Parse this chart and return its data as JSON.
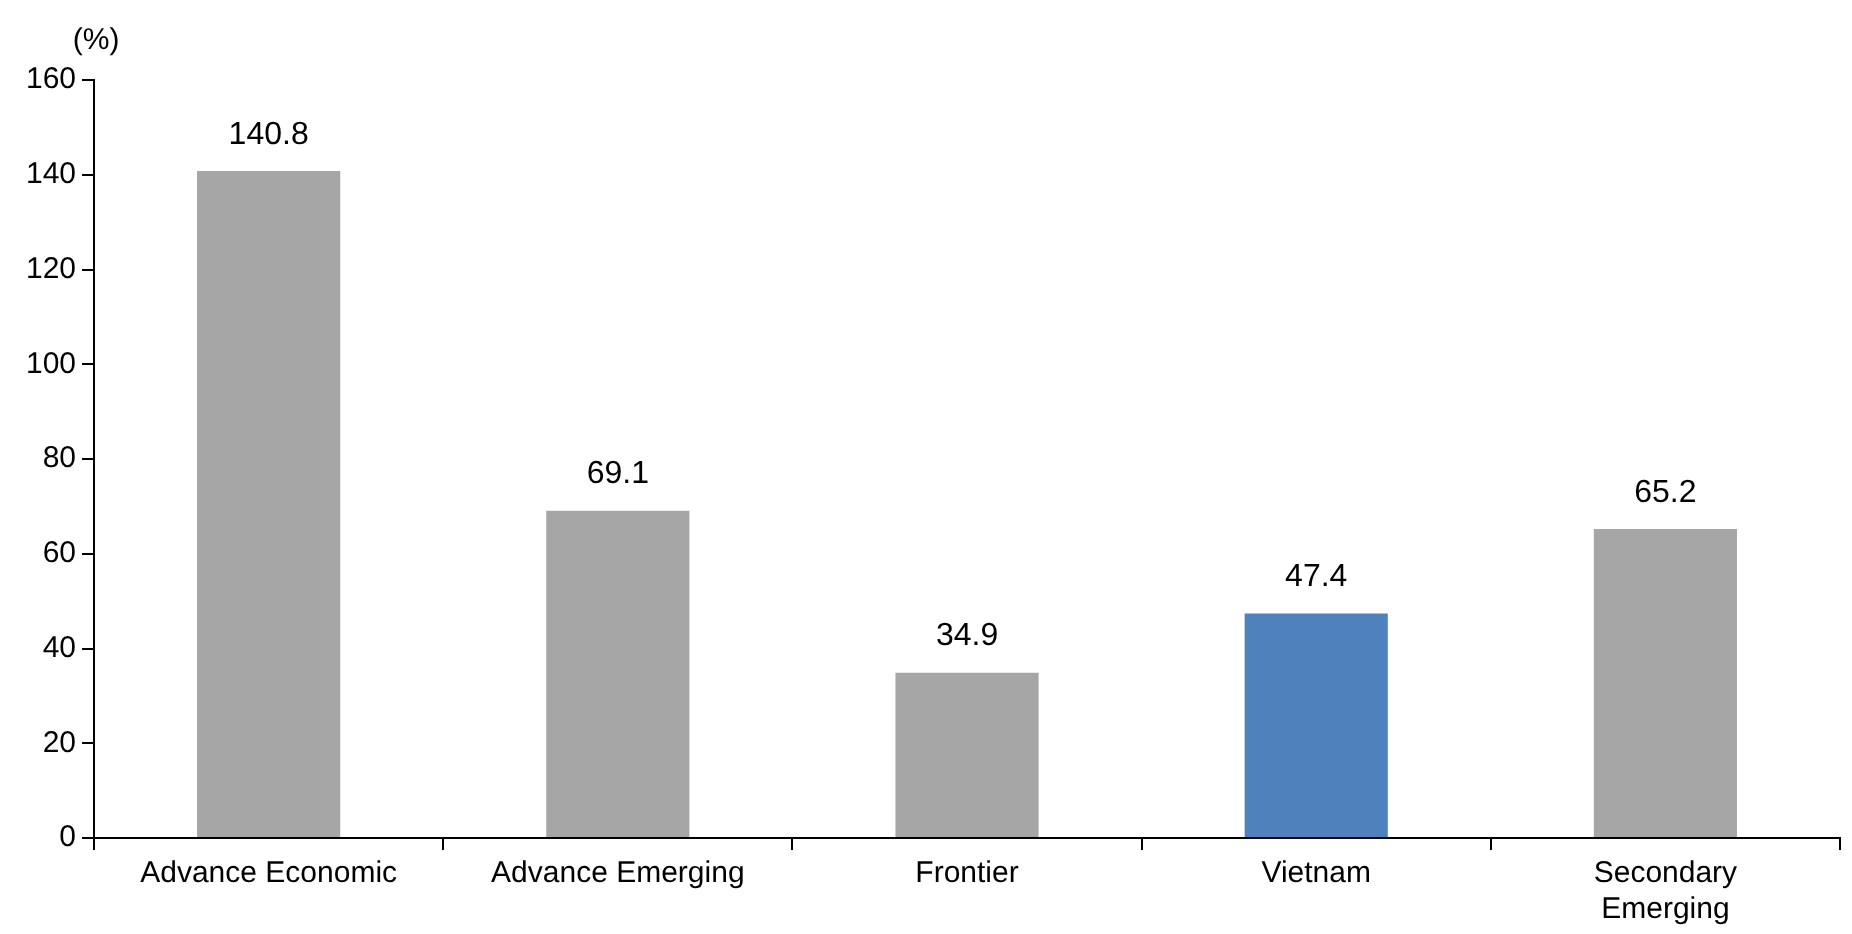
{
  "chart_data": {
    "type": "bar",
    "ylabel": "(%)",
    "categories": [
      "Advance Economic",
      "Advance Emerging",
      "Frontier",
      "Vietnam",
      "Secondary Emerging"
    ],
    "values": [
      140.8,
      69.1,
      34.9,
      47.4,
      65.2
    ],
    "colors": [
      "#a6a6a6",
      "#a6a6a6",
      "#a6a6a6",
      "#4f81bd",
      "#a6a6a6"
    ],
    "ylim": [
      0,
      160
    ],
    "yticks": [
      0,
      20,
      40,
      60,
      80,
      100,
      120,
      140,
      160
    ],
    "grid": false,
    "legend": false,
    "data_labels": true
  }
}
